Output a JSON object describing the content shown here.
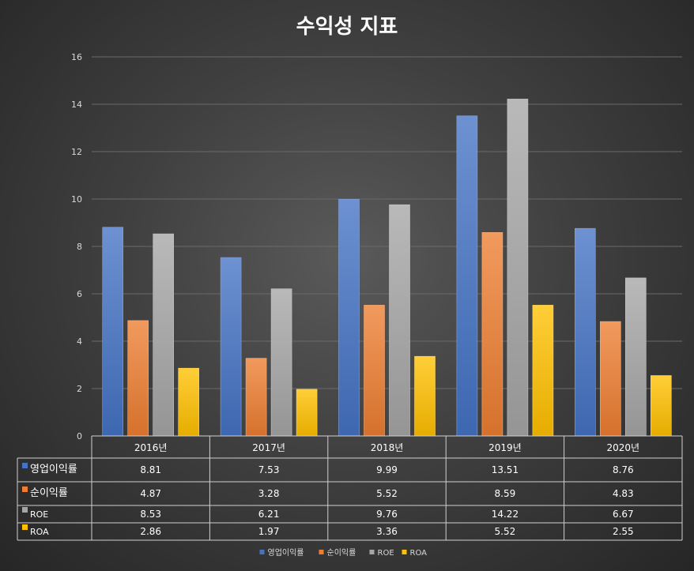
{
  "chart_data": {
    "type": "bar",
    "title": "수익성 지표",
    "categories": [
      "2016년",
      "2017년",
      "2018년",
      "2019년",
      "2020년"
    ],
    "series": [
      {
        "name": "영업이익률",
        "values": [
          8.81,
          7.53,
          9.99,
          13.51,
          8.76
        ],
        "value_labels": [
          "8.81",
          "7.53",
          "9.99",
          "13.51",
          "8.76"
        ],
        "color": "#4472c4"
      },
      {
        "name": "순이익률",
        "values": [
          4.87,
          3.28,
          5.52,
          8.59,
          4.83
        ],
        "value_labels": [
          "4.87",
          "3.28",
          "5.52",
          "8.59",
          "4.83"
        ],
        "color": "#ed7d31"
      },
      {
        "name": "ROE",
        "values": [
          8.53,
          6.21,
          9.76,
          14.22,
          6.67
        ],
        "value_labels": [
          "8.53",
          "6.21",
          "9.76",
          "14.22",
          "6.67"
        ],
        "color": "#a5a5a5"
      },
      {
        "name": "ROA",
        "values": [
          2.86,
          1.97,
          3.36,
          5.52,
          2.55
        ],
        "value_labels": [
          "2.86",
          "1.97",
          "3.36",
          "5.52",
          "2.55"
        ],
        "color": "#ffc000"
      }
    ],
    "ylim": [
      0,
      16
    ],
    "yticks": [
      "0",
      "2",
      "4",
      "6",
      "8",
      "10",
      "12",
      "14",
      "16"
    ],
    "grid": true,
    "data_table": true,
    "legend_position": "bottom"
  }
}
